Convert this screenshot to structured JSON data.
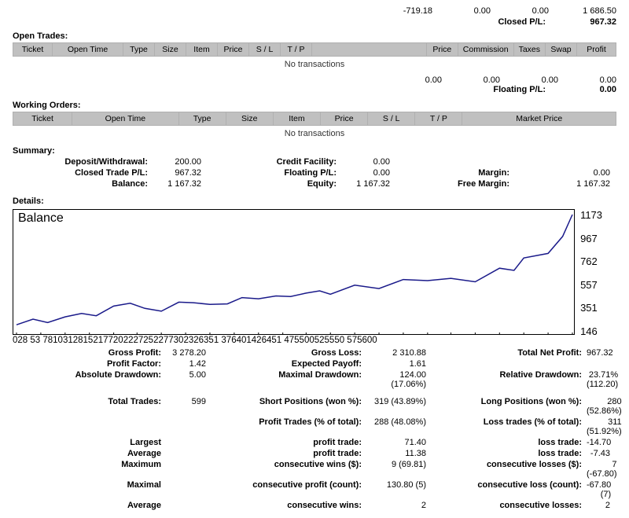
{
  "top_row": {
    "v1": "-719.18",
    "v2": "0.00",
    "v3": "0.00",
    "v4": "1 686.50"
  },
  "closed_pl": {
    "label": "Closed P/L:",
    "value": "967.32"
  },
  "open_trades": {
    "title": "Open Trades:",
    "headers": [
      "Ticket",
      "Open Time",
      "Type",
      "Size",
      "Item",
      "Price",
      "S / L",
      "T / P",
      "",
      "Price",
      "Commission",
      "Taxes",
      "Swap",
      "Profit"
    ],
    "no_trans": "No transactions"
  },
  "float_row": {
    "v1": "0.00",
    "v2": "0.00",
    "v3": "0.00",
    "v4": "0.00"
  },
  "floating_pl": {
    "label": "Floating P/L:",
    "value": "0.00"
  },
  "working_orders": {
    "title": "Working Orders:",
    "headers": [
      "Ticket",
      "Open Time",
      "Type",
      "Size",
      "Item",
      "Price",
      "S / L",
      "T / P",
      "Market Price"
    ],
    "no_trans": "No transactions"
  },
  "summary": {
    "title": "Summary:",
    "rows": [
      {
        "l1": "Deposit/Withdrawal:",
        "v1": "200.00",
        "l2": "Credit Facility:",
        "v2": "0.00"
      },
      {
        "l1": "Closed Trade P/L:",
        "v1": "967.32",
        "l2": "Floating P/L:",
        "v2": "0.00",
        "l3": "Margin:",
        "v3": "0.00"
      },
      {
        "l1": "Balance:",
        "v1": "1 167.32",
        "l2": "Equity:",
        "v2": "1 167.32",
        "l3": "Free Margin:",
        "v3": "1 167.32"
      }
    ]
  },
  "details_title": "Details:",
  "chart": {
    "title": "Balance",
    "type": "line",
    "line_color": "#1a1a8a",
    "line_width": 1.5,
    "background_color": "#ffffff",
    "border_color": "#000000",
    "xlim": [
      28,
      600
    ],
    "ylim": [
      146,
      1173
    ],
    "yticks": [
      146,
      351,
      557,
      762,
      967,
      1173
    ],
    "xticks_label": "028 53 78103128152177202227252277302326351 376401426451 475500525550 575600",
    "xticks": [
      28,
      53,
      78,
      103,
      128,
      152,
      177,
      202,
      227,
      252,
      277,
      302,
      326,
      351,
      376,
      401,
      426,
      451,
      475,
      500,
      525,
      550,
      575,
      600
    ],
    "values_x": [
      28,
      45,
      60,
      78,
      95,
      110,
      128,
      145,
      160,
      177,
      195,
      210,
      227,
      245,
      260,
      277,
      295,
      310,
      326,
      340,
      351,
      376,
      401,
      426,
      451,
      475,
      500,
      525,
      540,
      550,
      575,
      590,
      600
    ],
    "values_y": [
      200,
      250,
      220,
      270,
      300,
      280,
      365,
      390,
      345,
      320,
      400,
      395,
      380,
      385,
      440,
      430,
      455,
      450,
      480,
      500,
      470,
      550,
      520,
      600,
      590,
      610,
      580,
      700,
      680,
      790,
      830,
      980,
      1173
    ]
  },
  "details": {
    "rows": [
      {
        "l1": "Gross Profit:",
        "v1": "3 278.20",
        "l2": "Gross Loss:",
        "v2": "2 310.88",
        "l3": "Total Net Profit:",
        "v3": "967.32"
      },
      {
        "l1": "Profit Factor:",
        "v1": "1.42",
        "l2": "Expected Payoff:",
        "v2": "1.61",
        "l3": "",
        "v3": ""
      },
      {
        "l1": "Absolute Drawdown:",
        "v1": "5.00",
        "l2": "Maximal Drawdown:",
        "v2": "124.00 (17.06%)",
        "l3": "Relative Drawdown:",
        "v3": "23.71% (112.20)"
      },
      {
        "spacer": true
      },
      {
        "l1": "Total Trades:",
        "v1": "599",
        "l2": "Short Positions (won %):",
        "v2": "319 (43.89%)",
        "l3": "Long Positions (won %):",
        "v3": "280 (52.86%)"
      },
      {
        "l1": "",
        "v1": "",
        "l2": "Profit Trades (% of total):",
        "v2": "288 (48.08%)",
        "l3": "Loss trades (% of total):",
        "v3": "311 (51.92%)"
      },
      {
        "l1": "Largest",
        "v1": "",
        "l2": "profit trade:",
        "v2": "71.40",
        "l3": "loss trade:",
        "v3": "-14.70"
      },
      {
        "l1": "Average",
        "v1": "",
        "l2": "profit trade:",
        "v2": "11.38",
        "l3": "loss trade:",
        "v3": "-7.43"
      },
      {
        "l1": "Maximum",
        "v1": "",
        "l2": "consecutive wins ($):",
        "v2": "9 (69.81)",
        "l3": "consecutive losses ($):",
        "v3": "7 (-67.80)"
      },
      {
        "l1": "Maximal",
        "v1": "",
        "l2": "consecutive profit (count):",
        "v2": "130.80 (5)",
        "l3": "consecutive loss (count):",
        "v3": "-67.80 (7)"
      },
      {
        "l1": "Average",
        "v1": "",
        "l2": "consecutive wins:",
        "v2": "2",
        "l3": "consecutive losses:",
        "v3": "2"
      }
    ]
  }
}
